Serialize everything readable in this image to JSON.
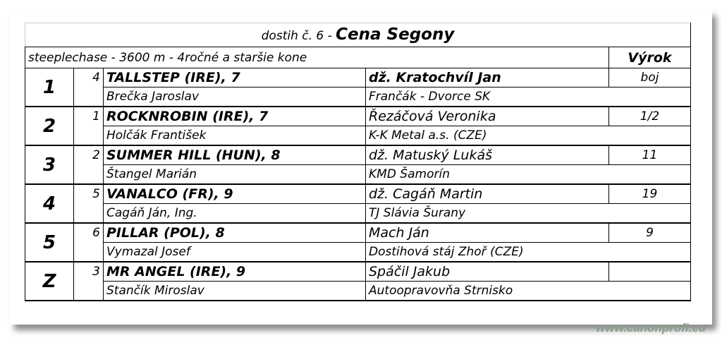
{
  "race": {
    "prefix": "dostih č. 6 -",
    "name": "Cena Segony",
    "conditions": "steeplechase - 3600 m - 4ročné a staršie kone",
    "vyrok_header": "Výrok"
  },
  "results": [
    {
      "place": "1",
      "number": "4",
      "horse": "TALLSTEP (IRE), 7",
      "jockey": "dž. Kratochvíl Jan",
      "vyrok": "boj",
      "trainer": "Brečka Jaroslav",
      "owner": "Frančák - Dvorce SK"
    },
    {
      "place": "2",
      "number": "1",
      "horse": "ROCKNROBIN (IRE), 7",
      "jockey": "Řezáčová Veronika",
      "vyrok": "1/2",
      "trainer": "Holčák František",
      "owner": "K-K Metal a.s. (CZE)"
    },
    {
      "place": "3",
      "number": "2",
      "horse": "SUMMER HILL (HUN), 8",
      "jockey": "dž. Matuský Lukáš",
      "vyrok": "11",
      "trainer": "Štangel Marián",
      "owner": "KMD Šamorín"
    },
    {
      "place": "4",
      "number": "5",
      "horse": "VANALCO (FR), 9",
      "jockey": "dž. Cagáň Martin",
      "vyrok": "19",
      "trainer": "Cagáň Ján, Ing.",
      "owner": "TJ Slávia Šurany"
    },
    {
      "place": "5",
      "number": "6",
      "horse": "PILLAR (POL), 8",
      "jockey": "Mach Ján",
      "vyrok": "9",
      "trainer": "Vymazal Josef",
      "owner": "Dostihová stáj Zhoř (CZE)"
    },
    {
      "place": "Z",
      "number": "3",
      "horse": "MR ANGEL (IRE), 9",
      "jockey": "Spáčil Jakub",
      "vyrok": "",
      "trainer": "Stančík Miroslav",
      "owner": "Autoopravovňa Strnisko"
    }
  ],
  "watermark": "www.canonprofi.eu"
}
